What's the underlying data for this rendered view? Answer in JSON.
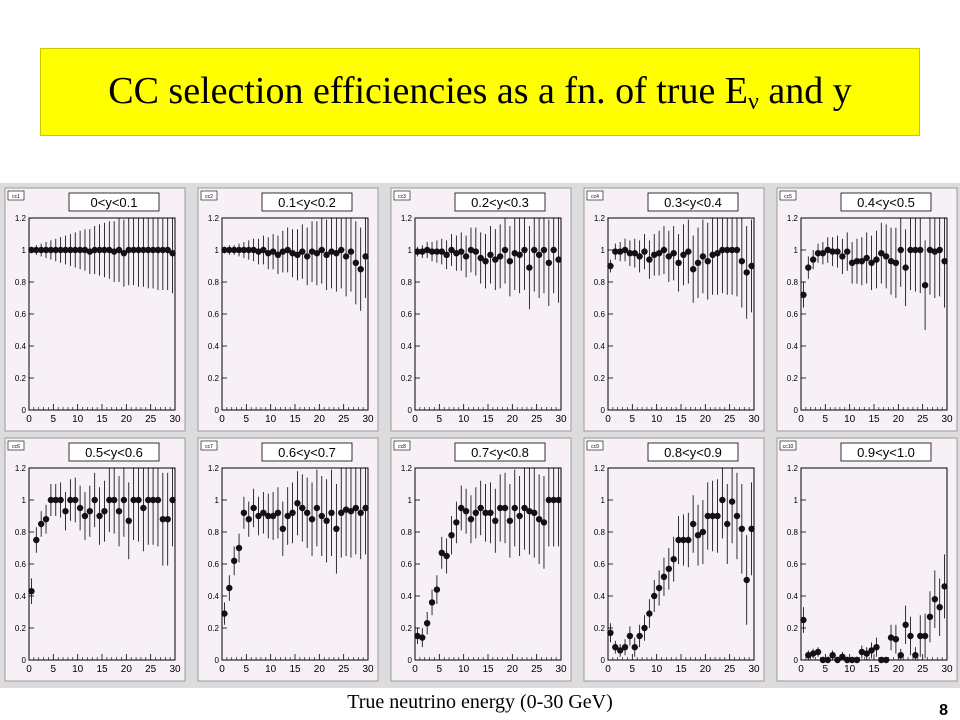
{
  "title": {
    "main": "CC selection efficiencies as a fn. of true E",
    "sub": "ν",
    "tail": " and y"
  },
  "footer": "True neutrino energy (0-30 GeV)",
  "page_number": "8",
  "colors": {
    "title_bg": "#ffff00",
    "panel_bg": "#dcdcdc",
    "frame_bg": "#f7f1f7",
    "marker": "#111111"
  },
  "chart_data": [
    {
      "type": "scatter",
      "name": "cc1",
      "title": "0<y<0.1",
      "xlim": [
        0,
        30
      ],
      "ylim": [
        0,
        1.2
      ],
      "x": [
        0.5,
        1.5,
        2.5,
        3.5,
        4.5,
        5.5,
        6.5,
        7.5,
        8.5,
        9.5,
        10.5,
        11.5,
        12.5,
        13.5,
        14.5,
        15.5,
        16.5,
        17.5,
        18.5,
        19.5,
        20.5,
        21.5,
        22.5,
        23.5,
        24.5,
        25.5,
        26.5,
        27.5,
        28.5,
        29.5
      ],
      "y": [
        1.0,
        1.0,
        1.0,
        1.0,
        1.0,
        1.0,
        1.0,
        1.0,
        1.0,
        1.0,
        1.0,
        1.0,
        0.99,
        1.0,
        1.0,
        1.0,
        1.0,
        0.99,
        1.0,
        0.98,
        1.0,
        1.0,
        1.0,
        1.0,
        1.0,
        1.0,
        1.0,
        1.0,
        1.0,
        0.98
      ],
      "err": [
        0.02,
        0.03,
        0.04,
        0.05,
        0.06,
        0.07,
        0.08,
        0.09,
        0.1,
        0.11,
        0.12,
        0.13,
        0.14,
        0.15,
        0.16,
        0.17,
        0.18,
        0.19,
        0.2,
        0.21,
        0.22,
        0.22,
        0.23,
        0.23,
        0.24,
        0.24,
        0.25,
        0.25,
        0.25,
        0.25
      ]
    },
    {
      "type": "scatter",
      "name": "cc2",
      "title": "0.1<y<0.2",
      "xlim": [
        0,
        30
      ],
      "ylim": [
        0,
        1.2
      ],
      "x": [
        0.5,
        1.5,
        2.5,
        3.5,
        4.5,
        5.5,
        6.5,
        7.5,
        8.5,
        9.5,
        10.5,
        11.5,
        12.5,
        13.5,
        14.5,
        15.5,
        16.5,
        17.5,
        18.5,
        19.5,
        20.5,
        21.5,
        22.5,
        23.5,
        24.5,
        25.5,
        26.5,
        27.5,
        28.5,
        29.5
      ],
      "y": [
        1.0,
        1.0,
        1.0,
        1.0,
        1.0,
        1.0,
        1.0,
        0.99,
        1.0,
        0.98,
        0.99,
        0.97,
        0.99,
        1.0,
        0.98,
        0.97,
        0.99,
        0.96,
        0.99,
        0.98,
        1.0,
        0.97,
        0.99,
        0.98,
        1.0,
        0.96,
        0.99,
        0.92,
        0.88,
        0.96
      ],
      "err": [
        0.02,
        0.03,
        0.03,
        0.04,
        0.05,
        0.06,
        0.07,
        0.08,
        0.09,
        0.1,
        0.11,
        0.12,
        0.13,
        0.14,
        0.15,
        0.16,
        0.17,
        0.18,
        0.19,
        0.2,
        0.21,
        0.22,
        0.23,
        0.24,
        0.24,
        0.25,
        0.25,
        0.26,
        0.26,
        0.26
      ]
    },
    {
      "type": "scatter",
      "name": "cc3",
      "title": "0.2<y<0.3",
      "xlim": [
        0,
        30
      ],
      "ylim": [
        0,
        1.2
      ],
      "x": [
        0.5,
        1.5,
        2.5,
        3.5,
        4.5,
        5.5,
        6.5,
        7.5,
        8.5,
        9.5,
        10.5,
        11.5,
        12.5,
        13.5,
        14.5,
        15.5,
        16.5,
        17.5,
        18.5,
        19.5,
        20.5,
        21.5,
        22.5,
        23.5,
        24.5,
        25.5,
        26.5,
        27.5,
        28.5,
        29.5
      ],
      "y": [
        0.99,
        0.99,
        1.0,
        0.99,
        0.99,
        0.99,
        0.97,
        1.0,
        0.98,
        0.99,
        0.96,
        1.0,
        0.99,
        0.95,
        0.93,
        0.97,
        0.94,
        0.96,
        1.0,
        0.93,
        0.98,
        0.97,
        1.0,
        0.89,
        1.0,
        0.97,
        1.0,
        0.92,
        1.0,
        0.94
      ],
      "err": [
        0.03,
        0.04,
        0.05,
        0.06,
        0.07,
        0.08,
        0.09,
        0.1,
        0.11,
        0.12,
        0.13,
        0.14,
        0.15,
        0.16,
        0.17,
        0.18,
        0.19,
        0.2,
        0.21,
        0.22,
        0.23,
        0.24,
        0.25,
        0.26,
        0.26,
        0.27,
        0.27,
        0.27,
        0.27,
        0.27
      ]
    },
    {
      "type": "scatter",
      "name": "cc4",
      "title": "0.3<y<0.4",
      "xlim": [
        0,
        30
      ],
      "ylim": [
        0,
        1.2
      ],
      "x": [
        0.5,
        1.5,
        2.5,
        3.5,
        4.5,
        5.5,
        6.5,
        7.5,
        8.5,
        9.5,
        10.5,
        11.5,
        12.5,
        13.5,
        14.5,
        15.5,
        16.5,
        17.5,
        18.5,
        19.5,
        20.5,
        21.5,
        22.5,
        23.5,
        24.5,
        25.5,
        26.5,
        27.5,
        28.5,
        29.5
      ],
      "y": [
        0.9,
        0.99,
        0.99,
        1.0,
        0.98,
        0.98,
        0.96,
        0.99,
        0.94,
        0.97,
        0.98,
        1.0,
        0.96,
        0.98,
        0.92,
        0.97,
        0.99,
        0.88,
        0.92,
        0.96,
        0.93,
        0.97,
        0.98,
        1.0,
        1.0,
        1.0,
        1.0,
        0.93,
        0.86,
        0.9
      ],
      "err": [
        0.04,
        0.05,
        0.06,
        0.07,
        0.08,
        0.09,
        0.1,
        0.11,
        0.12,
        0.13,
        0.14,
        0.15,
        0.16,
        0.17,
        0.18,
        0.19,
        0.2,
        0.21,
        0.22,
        0.23,
        0.24,
        0.25,
        0.26,
        0.27,
        0.28,
        0.28,
        0.29,
        0.29,
        0.29,
        0.29
      ]
    },
    {
      "type": "scatter",
      "name": "cc5",
      "title": "0.4<y<0.5",
      "xlim": [
        0,
        30
      ],
      "ylim": [
        0,
        1.2
      ],
      "x": [
        0.5,
        1.5,
        2.5,
        3.5,
        4.5,
        5.5,
        6.5,
        7.5,
        8.5,
        9.5,
        10.5,
        11.5,
        12.5,
        13.5,
        14.5,
        15.5,
        16.5,
        17.5,
        18.5,
        19.5,
        20.5,
        21.5,
        22.5,
        23.5,
        24.5,
        25.5,
        26.5,
        27.5,
        28.5,
        29.5
      ],
      "y": [
        0.72,
        0.89,
        0.94,
        0.98,
        0.98,
        1.0,
        0.99,
        0.99,
        0.96,
        0.99,
        0.92,
        0.93,
        0.93,
        0.95,
        0.92,
        0.94,
        0.98,
        0.96,
        0.93,
        0.92,
        1.0,
        0.89,
        1.0,
        1.0,
        1.0,
        0.78,
        1.0,
        0.99,
        1.0,
        0.93
      ],
      "err": [
        0.08,
        0.07,
        0.06,
        0.06,
        0.07,
        0.08,
        0.09,
        0.1,
        0.11,
        0.12,
        0.13,
        0.14,
        0.15,
        0.16,
        0.17,
        0.18,
        0.19,
        0.2,
        0.21,
        0.22,
        0.23,
        0.24,
        0.25,
        0.26,
        0.27,
        0.28,
        0.28,
        0.29,
        0.29,
        0.29
      ]
    },
    {
      "type": "scatter",
      "name": "cc6",
      "title": "0.5<y<0.6",
      "xlim": [
        0,
        30
      ],
      "ylim": [
        0,
        1.2
      ],
      "x": [
        0.5,
        1.5,
        2.5,
        3.5,
        4.5,
        5.5,
        6.5,
        7.5,
        8.5,
        9.5,
        10.5,
        11.5,
        12.5,
        13.5,
        14.5,
        15.5,
        16.5,
        17.5,
        18.5,
        19.5,
        20.5,
        21.5,
        22.5,
        23.5,
        24.5,
        25.5,
        26.5,
        27.5,
        28.5,
        29.5
      ],
      "y": [
        0.43,
        0.75,
        0.85,
        0.88,
        1.0,
        1.0,
        1.0,
        0.93,
        1.0,
        1.0,
        0.95,
        0.9,
        0.93,
        1.0,
        0.9,
        0.93,
        1.0,
        1.0,
        0.93,
        1.0,
        0.87,
        1.0,
        1.0,
        0.95,
        1.0,
        1.0,
        1.0,
        0.88,
        0.88,
        1.0
      ],
      "err": [
        0.08,
        0.08,
        0.08,
        0.09,
        0.1,
        0.1,
        0.11,
        0.12,
        0.13,
        0.14,
        0.14,
        0.15,
        0.16,
        0.17,
        0.18,
        0.19,
        0.2,
        0.21,
        0.22,
        0.23,
        0.24,
        0.25,
        0.26,
        0.27,
        0.28,
        0.28,
        0.29,
        0.29,
        0.29,
        0.29
      ]
    },
    {
      "type": "scatter",
      "name": "cc7",
      "title": "0.6<y<0.7",
      "xlim": [
        0,
        30
      ],
      "ylim": [
        0,
        1.2
      ],
      "x": [
        0.5,
        1.5,
        2.5,
        3.5,
        4.5,
        5.5,
        6.5,
        7.5,
        8.5,
        9.5,
        10.5,
        11.5,
        12.5,
        13.5,
        14.5,
        15.5,
        16.5,
        17.5,
        18.5,
        19.5,
        20.5,
        21.5,
        22.5,
        23.5,
        24.5,
        25.5,
        26.5,
        27.5,
        28.5,
        29.5
      ],
      "y": [
        0.29,
        0.45,
        0.62,
        0.7,
        0.92,
        0.88,
        0.95,
        0.9,
        0.92,
        0.9,
        0.9,
        0.92,
        0.82,
        0.9,
        0.92,
        0.98,
        0.95,
        0.92,
        0.88,
        0.95,
        0.9,
        0.87,
        0.92,
        0.82,
        0.92,
        0.94,
        0.93,
        0.95,
        0.92,
        0.95
      ],
      "err": [
        0.07,
        0.08,
        0.09,
        0.09,
        0.1,
        0.11,
        0.12,
        0.12,
        0.13,
        0.14,
        0.15,
        0.16,
        0.17,
        0.18,
        0.19,
        0.2,
        0.21,
        0.22,
        0.23,
        0.24,
        0.25,
        0.26,
        0.27,
        0.28,
        0.28,
        0.29,
        0.29,
        0.29,
        0.29,
        0.29
      ]
    },
    {
      "type": "scatter",
      "name": "cc8",
      "title": "0.7<y<0.8",
      "xlim": [
        0,
        30
      ],
      "ylim": [
        0,
        1.2
      ],
      "x": [
        0.5,
        1.5,
        2.5,
        3.5,
        4.5,
        5.5,
        6.5,
        7.5,
        8.5,
        9.5,
        10.5,
        11.5,
        12.5,
        13.5,
        14.5,
        15.5,
        16.5,
        17.5,
        18.5,
        19.5,
        20.5,
        21.5,
        22.5,
        23.5,
        24.5,
        25.5,
        26.5,
        27.5,
        28.5,
        29.5
      ],
      "y": [
        0.15,
        0.14,
        0.23,
        0.36,
        0.44,
        0.67,
        0.65,
        0.78,
        0.86,
        0.95,
        0.93,
        0.88,
        0.92,
        0.95,
        0.92,
        0.92,
        0.87,
        0.95,
        0.95,
        0.87,
        0.95,
        0.9,
        0.95,
        0.93,
        0.92,
        0.88,
        0.86,
        1.0,
        1.0,
        1.0
      ],
      "err": [
        0.05,
        0.06,
        0.07,
        0.08,
        0.09,
        0.1,
        0.11,
        0.12,
        0.13,
        0.14,
        0.14,
        0.15,
        0.16,
        0.17,
        0.18,
        0.19,
        0.2,
        0.21,
        0.22,
        0.23,
        0.24,
        0.25,
        0.26,
        0.27,
        0.28,
        0.28,
        0.29,
        0.29,
        0.29,
        0.29
      ]
    },
    {
      "type": "scatter",
      "name": "cc9",
      "title": "0.8<y<0.9",
      "xlim": [
        0,
        30
      ],
      "ylim": [
        0,
        1.2
      ],
      "x": [
        0.5,
        1.5,
        2.5,
        3.5,
        4.5,
        5.5,
        6.5,
        7.5,
        8.5,
        9.5,
        10.5,
        11.5,
        12.5,
        13.5,
        14.5,
        15.5,
        16.5,
        17.5,
        18.5,
        19.5,
        20.5,
        21.5,
        22.5,
        23.5,
        24.5,
        25.5,
        26.5,
        27.5,
        28.5,
        29.5
      ],
      "y": [
        0.17,
        0.08,
        0.06,
        0.08,
        0.15,
        0.08,
        0.15,
        0.2,
        0.29,
        0.4,
        0.45,
        0.52,
        0.57,
        0.63,
        0.75,
        0.75,
        0.75,
        0.85,
        0.78,
        0.8,
        0.9,
        0.9,
        0.9,
        1.0,
        0.85,
        0.99,
        0.9,
        0.82,
        0.5,
        0.82
      ],
      "err": [
        0.06,
        0.04,
        0.04,
        0.05,
        0.06,
        0.06,
        0.07,
        0.08,
        0.09,
        0.1,
        0.11,
        0.12,
        0.13,
        0.14,
        0.15,
        0.16,
        0.17,
        0.18,
        0.19,
        0.2,
        0.21,
        0.22,
        0.23,
        0.24,
        0.25,
        0.26,
        0.27,
        0.28,
        0.28,
        0.29
      ]
    },
    {
      "type": "scatter",
      "name": "cc10",
      "title": "0.9<y<1.0",
      "xlim": [
        0,
        30
      ],
      "ylim": [
        0,
        1.2
      ],
      "x": [
        0.5,
        1.5,
        2.5,
        3.5,
        4.5,
        5.5,
        6.5,
        7.5,
        8.5,
        9.5,
        10.5,
        11.5,
        12.5,
        13.5,
        14.5,
        15.5,
        16.5,
        17.5,
        18.5,
        19.5,
        20.5,
        21.5,
        22.5,
        23.5,
        24.5,
        25.5,
        26.5,
        27.5,
        28.5,
        29.5
      ],
      "y": [
        0.25,
        0.03,
        0.04,
        0.05,
        0.0,
        0.0,
        0.03,
        0.0,
        0.02,
        0.0,
        0.0,
        0.0,
        0.05,
        0.04,
        0.06,
        0.08,
        0.0,
        0.0,
        0.14,
        0.13,
        0.03,
        0.22,
        0.15,
        0.03,
        0.15,
        0.15,
        0.27,
        0.38,
        0.33,
        0.46
      ],
      "err": [
        0.08,
        0.03,
        0.03,
        0.03,
        0.02,
        0.02,
        0.03,
        0.02,
        0.03,
        0.02,
        0.02,
        0.02,
        0.04,
        0.04,
        0.05,
        0.06,
        0.02,
        0.02,
        0.08,
        0.09,
        0.04,
        0.12,
        0.12,
        0.05,
        0.13,
        0.14,
        0.16,
        0.18,
        0.18,
        0.2
      ]
    }
  ]
}
